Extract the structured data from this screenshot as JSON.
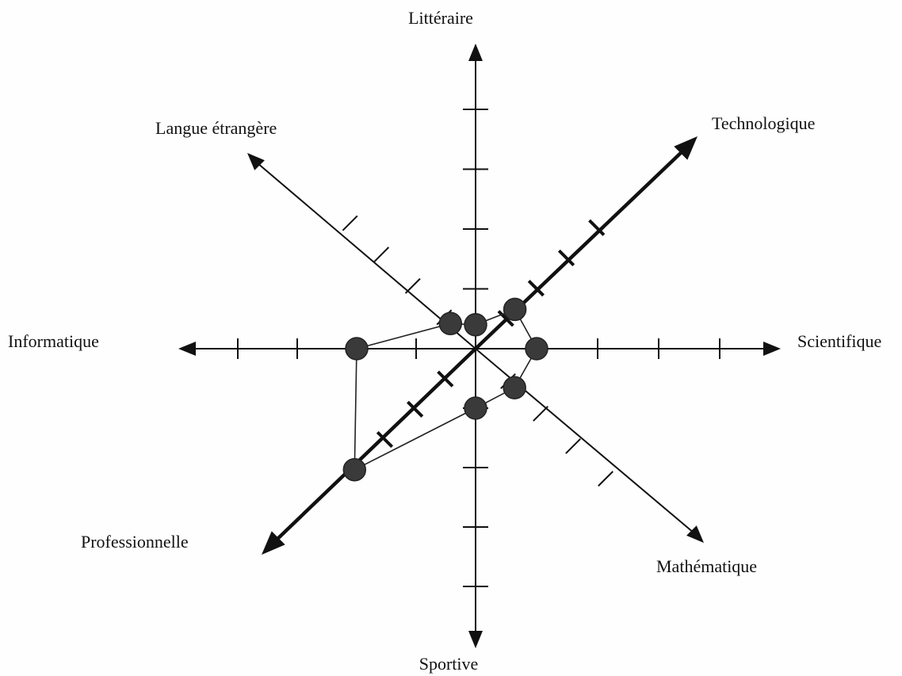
{
  "axes": [
    {
      "key": "litteraire",
      "label": "Littéraire",
      "ticks": 4,
      "value": 0.4
    },
    {
      "key": "technologique",
      "label": "Technologique",
      "ticks": 4,
      "value": 1.3
    },
    {
      "key": "scientifique",
      "label": "Scientifique",
      "ticks": 4,
      "value": 1.0
    },
    {
      "key": "mathematique",
      "label": "Mathématique",
      "ticks": 4,
      "value": 1.2
    },
    {
      "key": "sportive",
      "label": "Sportive",
      "ticks": 4,
      "value": 1.0
    },
    {
      "key": "professionnelle",
      "label": "Professionnelle",
      "ticks": 4,
      "value": 4.0
    },
    {
      "key": "informatique",
      "label": "Informatique",
      "ticks": 4,
      "value": 2.0
    },
    {
      "key": "langue",
      "label": "Langue étrangère",
      "ticks": 4,
      "value": 0.8
    }
  ],
  "colors": {
    "ink": "#111111",
    "marker": "#3a3a3a"
  }
}
